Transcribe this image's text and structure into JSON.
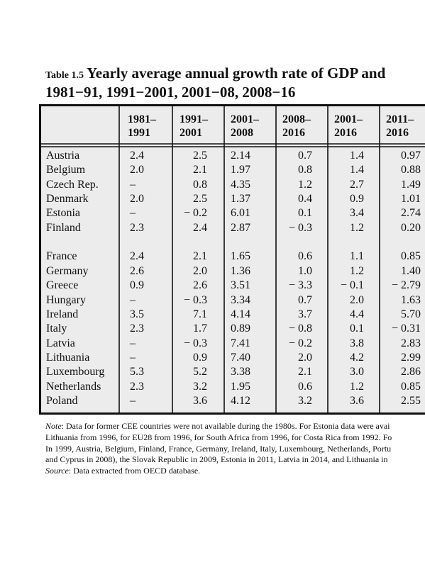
{
  "title": {
    "prefix": "Table 1.5",
    "line1": "Yearly average annual growth rate of GDP and",
    "line2": "1981−91, 1991−2001, 2001−08, 2008−16"
  },
  "table": {
    "header": [
      [
        "1981–",
        "1991"
      ],
      [
        "1991–",
        "2001"
      ],
      [
        "2001–",
        "2008"
      ],
      [
        "2008–",
        "2016"
      ],
      [
        "2001–",
        "2016"
      ],
      [
        "2011–",
        "2016"
      ]
    ],
    "rows": [
      [
        "Austria",
        "2.4",
        "2.5",
        "2.14",
        "0.7",
        "1.4",
        "0.97"
      ],
      [
        "Belgium",
        "2.0",
        "2.1",
        "1.97",
        "0.8",
        "1.4",
        "0.88"
      ],
      [
        "Czech Rep.",
        "–",
        "0.8",
        "4.35",
        "1.2",
        "2.7",
        "1.49"
      ],
      [
        "Denmark",
        "2.0",
        "2.5",
        "1.37",
        "0.4",
        "0.9",
        "1.01"
      ],
      [
        "Estonia",
        "–",
        "− 0.2",
        "6.01",
        "0.1",
        "3.4",
        "2.74"
      ],
      [
        "Finland",
        "2.3",
        "2.4",
        "2.87",
        "− 0.3",
        "1.2",
        "0.20"
      ],
      [
        "France",
        "2.4",
        "2.1",
        "1.65",
        "0.6",
        "1.1",
        "0.85"
      ],
      [
        "Germany",
        "2.6",
        "2.0",
        "1.36",
        "1.0",
        "1.2",
        "1.40"
      ],
      [
        "Greece",
        "0.9",
        "2.6",
        "3.51",
        "− 3.3",
        "− 0.1",
        "− 2.79"
      ],
      [
        "Hungary",
        "–",
        "− 0.3",
        "3.34",
        "0.7",
        "2.0",
        "1.63"
      ],
      [
        "Ireland",
        "3.5",
        "7.1",
        "4.14",
        "3.7",
        "4.4",
        "5.70"
      ],
      [
        "Italy",
        "2.3",
        "1.7",
        "0.89",
        "− 0.8",
        "0.1",
        "− 0.31"
      ],
      [
        "Latvia",
        "–",
        "− 0.3",
        "7.41",
        "− 0.2",
        "3.8",
        "2.83"
      ],
      [
        "Lithuania",
        "–",
        "0.9",
        "7.40",
        "2.0",
        "4.2",
        "2.99"
      ],
      [
        "Luxembourg",
        "5.3",
        "5.2",
        "3.38",
        "2.1",
        "3.0",
        "2.86"
      ],
      [
        "Netherlands",
        "2.3",
        "3.2",
        "1.95",
        "0.6",
        "1.2",
        "0.85"
      ],
      [
        "Poland",
        "–",
        "3.6",
        "4.12",
        "3.2",
        "3.6",
        "2.55"
      ]
    ]
  },
  "note": {
    "label": "Note",
    "lines": [
      ": Data for former CEE countries were not available during the 1980s. For Estonia data were avai",
      "Lithuania from 1996, for EU28 from 1996, for South Africa from 1996, for Costa Rica from 1992. Fo",
      "In 1999, Austria, Belgium, Finland, France, Germany, Ireland, Italy, Luxembourg, Netherlands, Portu",
      "and Cyprus in 2008), the Slovak Republic in 2009, Estonia in 2011, Latvia in 2014, and Lithuania in"
    ]
  },
  "source": {
    "label": "Source",
    "text": ": Data extracted from OECD database."
  }
}
